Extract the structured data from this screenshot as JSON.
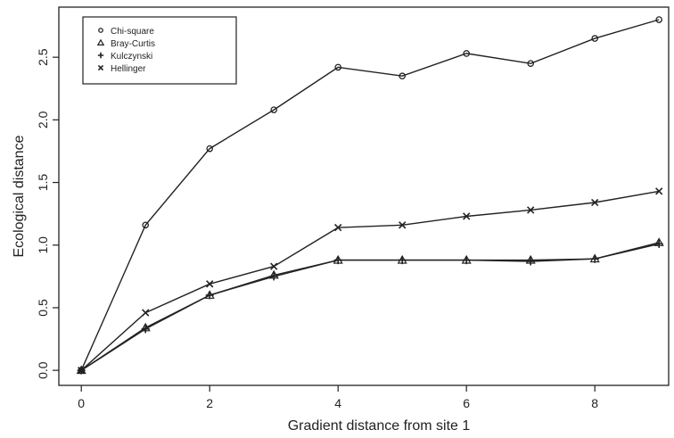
{
  "chart_data": {
    "type": "line",
    "title": "",
    "xlabel": "Gradient distance from site 1",
    "ylabel": "Ecological distance",
    "xlim": [
      -0.35,
      9.15
    ],
    "ylim": [
      -0.12,
      2.9
    ],
    "x_ticks": [
      "0",
      "2",
      "4",
      "6",
      "8"
    ],
    "y_ticks": [
      "0.0",
      "0.5",
      "1.0",
      "1.5",
      "2.0",
      "2.5"
    ],
    "legend_position": "top-left",
    "grid": false,
    "x": [
      0,
      1,
      2,
      3,
      4,
      5,
      6,
      7,
      8,
      9
    ],
    "series": [
      {
        "name": "Chi-square",
        "marker": "circle",
        "values": [
          0.0,
          1.16,
          1.77,
          2.08,
          2.42,
          2.35,
          2.53,
          2.45,
          2.65,
          2.8
        ]
      },
      {
        "name": "Bray-Curtis",
        "marker": "triangle",
        "values": [
          0.0,
          0.34,
          0.6,
          0.76,
          0.88,
          0.88,
          0.88,
          0.88,
          0.89,
          1.02
        ]
      },
      {
        "name": "Kulczynski",
        "marker": "plus",
        "values": [
          0.0,
          0.33,
          0.6,
          0.75,
          0.88,
          0.88,
          0.88,
          0.87,
          0.89,
          1.01
        ]
      },
      {
        "name": "Hellinger",
        "marker": "x",
        "values": [
          0.0,
          0.46,
          0.69,
          0.83,
          1.14,
          1.16,
          1.23,
          1.28,
          1.34,
          1.43
        ]
      }
    ]
  }
}
